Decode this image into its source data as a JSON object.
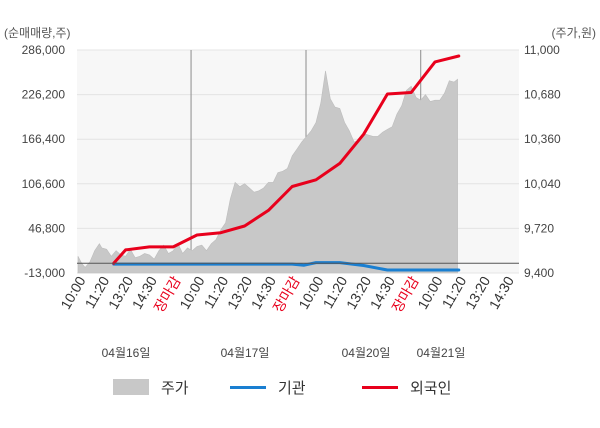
{
  "chart_data": {
    "type": "area",
    "left_axis": {
      "unit": "(순매매량,주)",
      "ticks": [
        "286,000",
        "226,200",
        "166,400",
        "106,600",
        "46,800",
        "-13,000"
      ],
      "ylim": [
        -13000,
        286000
      ]
    },
    "right_axis": {
      "unit": "(주가,원)",
      "ticks": [
        "11,000",
        "10,680",
        "10,360",
        "10,040",
        "9,720",
        "9,400"
      ],
      "ylim": [
        9400,
        11000
      ]
    },
    "x_tick_labels": [
      "10:00",
      "11:20",
      "13:20",
      "14:30",
      "장마감",
      "10:00",
      "11:20",
      "13:20",
      "14:30",
      "장마감",
      "10:00",
      "11:20",
      "13:20",
      "14:30",
      "장마감",
      "10:00",
      "11:20",
      "13:20",
      "14:30"
    ],
    "close_label": "장마감",
    "days": [
      "04월16일",
      "04월17일",
      "04월20일",
      "04월21일"
    ],
    "x_range": [
      0,
      18
    ],
    "grid": true,
    "legend_position": "bottom",
    "series": [
      {
        "name": "주가",
        "axis": "right",
        "kind": "area",
        "color": "#c8c8c8",
        "x": [
          0,
          0.15,
          0.3,
          0.5,
          0.7,
          0.9,
          1.0,
          1.2,
          1.4,
          1.6,
          1.8,
          2.0,
          2.2,
          2.4,
          2.6,
          2.8,
          3.0,
          3.2,
          3.4,
          3.6,
          3.8,
          4.0,
          4.2,
          4.4,
          4.6,
          4.8,
          5.0,
          5.2,
          5.4,
          5.6,
          5.8,
          6.0,
          6.2,
          6.4,
          6.6,
          6.8,
          7.0,
          7.2,
          7.4,
          7.6,
          7.8,
          8.0,
          8.2,
          8.4,
          8.6,
          8.8,
          9.0,
          9.2,
          9.4,
          9.6,
          9.8,
          10.0,
          10.2,
          10.4,
          10.6,
          10.8,
          11.0,
          11.2,
          11.4,
          11.6,
          11.8,
          12.0,
          12.2,
          12.4,
          12.6,
          12.8,
          13.0,
          13.2,
          13.4,
          13.6,
          13.8,
          14.0,
          14.2,
          14.4,
          14.6,
          14.8,
          15.0,
          15.2,
          15.4,
          15.6,
          15.8,
          15.95
        ],
        "values": [
          9520,
          9470,
          9440,
          9480,
          9560,
          9610,
          9580,
          9570,
          9520,
          9560,
          9530,
          9520,
          9570,
          9510,
          9520,
          9540,
          9530,
          9500,
          9560,
          9600,
          9540,
          9560,
          9610,
          9540,
          9580,
          9560,
          9590,
          9600,
          9560,
          9610,
          9640,
          9710,
          9760,
          9930,
          10050,
          10020,
          10040,
          10010,
          9980,
          9990,
          10010,
          10050,
          10050,
          10120,
          10130,
          10150,
          10240,
          10290,
          10340,
          10380,
          10420,
          10480,
          10620,
          10850,
          10650,
          10590,
          10580,
          10480,
          10420,
          10340,
          10350,
          10400,
          10390,
          10380,
          10380,
          10410,
          10430,
          10450,
          10540,
          10600,
          10710,
          10740,
          10660,
          10640,
          10680,
          10630,
          10640,
          10640,
          10690,
          10780,
          10770,
          10790
        ]
      },
      {
        "name": "기관",
        "axis": "left",
        "kind": "line",
        "color": "#1a7fd1",
        "x": [
          1.5,
          2.0,
          3.0,
          4.0,
          5.0,
          6.0,
          7.0,
          8.0,
          9.0,
          9.5,
          10.0,
          11.0,
          12.0,
          13.0,
          14.0,
          15.0,
          16.0
        ],
        "values": [
          -1000,
          -1000,
          -1000,
          -1000,
          -1000,
          -1000,
          -1000,
          -1000,
          -1000,
          -2500,
          1000,
          1000,
          -3000,
          -9000,
          -9000,
          -9000,
          -9000
        ]
      },
      {
        "name": "외국인",
        "axis": "left",
        "kind": "line",
        "color": "#e8001c",
        "x": [
          1.5,
          2.0,
          3.0,
          4.0,
          5.0,
          6.0,
          7.0,
          8.0,
          9.0,
          10.0,
          11.0,
          12.0,
          13.0,
          14.0,
          15.0,
          16.0
        ],
        "values": [
          0,
          18000,
          22000,
          22000,
          38000,
          41000,
          50000,
          71000,
          103000,
          112000,
          134000,
          173000,
          227000,
          229000,
          270000,
          278000
        ]
      }
    ]
  }
}
